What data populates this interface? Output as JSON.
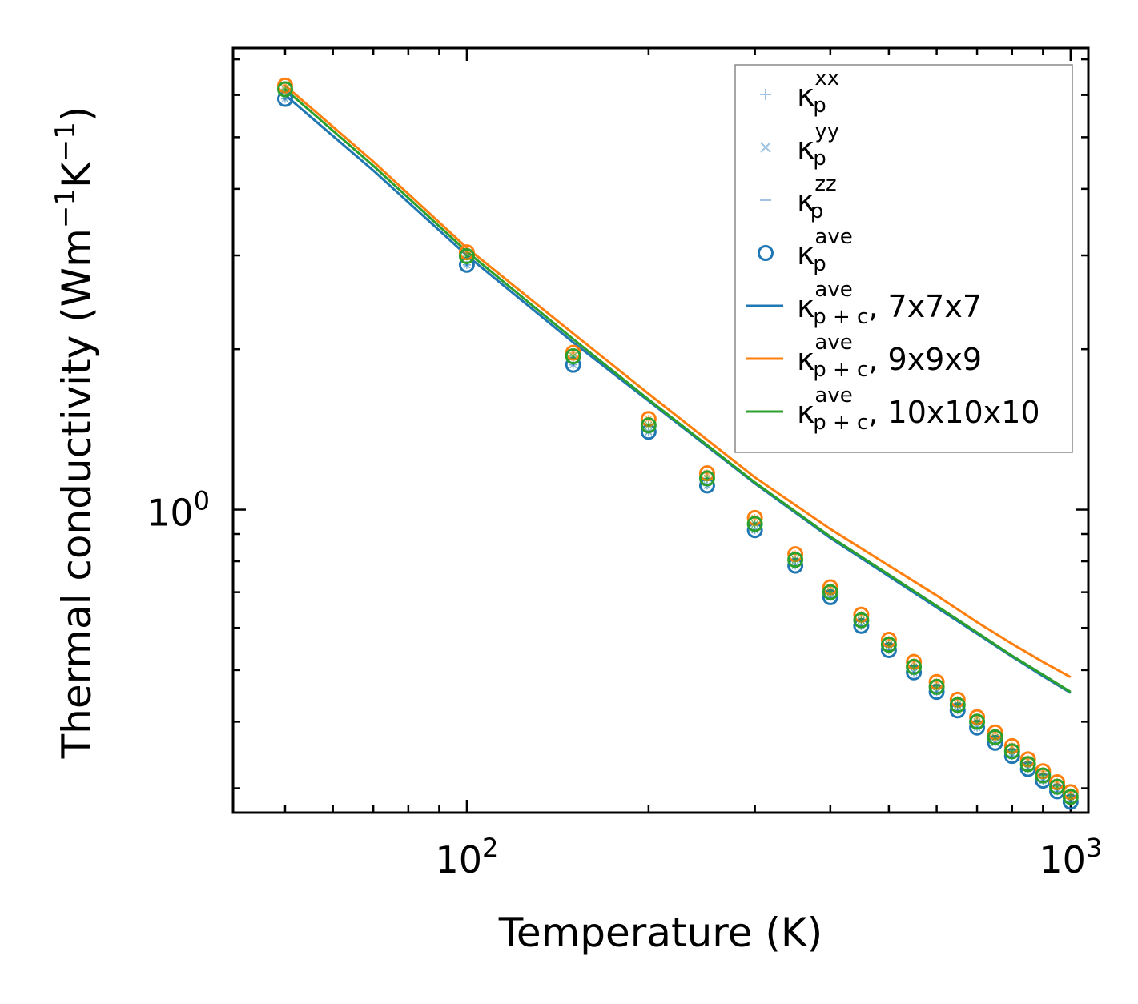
{
  "chart_data": {
    "type": "scatter",
    "xscale": "log",
    "yscale": "log",
    "xlim": [
      41,
      1070
    ],
    "ylim": [
      0.27,
      7.35
    ],
    "xlabel": "Temperature (K)",
    "ylabel_parts": {
      "main": "Thermal conductivity (Wm",
      "exp1": "−1",
      "mid": "K",
      "exp2": "−1",
      "close": ")"
    },
    "xticks": [
      {
        "value": 100,
        "base": "10",
        "exp": "2"
      },
      {
        "value": 1000,
        "base": "10",
        "exp": "3"
      }
    ],
    "yticks": [
      {
        "value": 1,
        "base": "10",
        "exp": "0"
      }
    ],
    "x": [
      50,
      100,
      150,
      200,
      250,
      300,
      350,
      400,
      450,
      500,
      550,
      600,
      650,
      700,
      750,
      800,
      850,
      900,
      950,
      1000
    ],
    "scatter_series": [
      {
        "name": "7x7x7",
        "color": "#1f77b4",
        "values": [
          5.9,
          2.88,
          1.87,
          1.4,
          1.11,
          0.915,
          0.785,
          0.685,
          0.605,
          0.545,
          0.495,
          0.455,
          0.42,
          0.39,
          0.365,
          0.345,
          0.326,
          0.31,
          0.296,
          0.283
        ]
      },
      {
        "name": "9x9x9",
        "color": "#ff7f0e",
        "values": [
          6.25,
          3.04,
          1.97,
          1.48,
          1.17,
          0.965,
          0.825,
          0.715,
          0.635,
          0.57,
          0.518,
          0.475,
          0.44,
          0.408,
          0.382,
          0.36,
          0.34,
          0.323,
          0.308,
          0.295
        ]
      },
      {
        "name": "10x10x10",
        "color": "#2ca02c",
        "values": [
          6.15,
          2.99,
          1.94,
          1.44,
          1.145,
          0.94,
          0.805,
          0.7,
          0.62,
          0.558,
          0.507,
          0.465,
          0.43,
          0.4,
          0.374,
          0.352,
          0.333,
          0.317,
          0.302,
          0.289
        ]
      }
    ],
    "series": [
      {
        "name": "κp+c ave, 7x7x7",
        "color": "#1f77b4",
        "x": [
          50,
          70,
          100,
          150,
          200,
          300,
          400,
          500,
          600,
          700,
          800,
          900,
          1000
        ],
        "values": [
          6.0,
          4.33,
          3.0,
          2.06,
          1.6,
          1.12,
          0.885,
          0.75,
          0.655,
          0.585,
          0.53,
          0.487,
          0.453
        ]
      },
      {
        "name": "κp+c ave, 9x9x9",
        "color": "#ff7f0e",
        "x": [
          50,
          70,
          100,
          150,
          200,
          300,
          400,
          500,
          600,
          700,
          800,
          900,
          1000
        ],
        "values": [
          6.25,
          4.5,
          3.1,
          2.14,
          1.65,
          1.15,
          0.92,
          0.785,
          0.69,
          0.615,
          0.56,
          0.518,
          0.485
        ]
      },
      {
        "name": "κp+c ave, 10x10x10",
        "color": "#2ca02c",
        "x": [
          50,
          70,
          100,
          150,
          200,
          300,
          400,
          500,
          600,
          700,
          800,
          900,
          1000
        ],
        "values": [
          6.15,
          4.42,
          3.05,
          2.09,
          1.61,
          1.125,
          0.89,
          0.755,
          0.66,
          0.588,
          0.532,
          0.49,
          0.455
        ]
      }
    ],
    "legend": {
      "placement": "top-right",
      "entries": [
        {
          "kind": "plus",
          "color": "#9fc3e0",
          "sym": "κ",
          "sub": "p",
          "sup": "xx",
          "rest": ""
        },
        {
          "kind": "cross",
          "color": "#9fc3e0",
          "sym": "κ",
          "sub": "p",
          "sup": "yy",
          "rest": ""
        },
        {
          "kind": "dash",
          "color": "#9fc3e0",
          "sym": "κ",
          "sub": "p",
          "sup": "zz",
          "rest": ""
        },
        {
          "kind": "circle",
          "color": "#1f77b4",
          "sym": "κ",
          "sub": "p",
          "sup": "ave",
          "rest": ""
        },
        {
          "kind": "line",
          "color": "#1f77b4",
          "sym": "κ",
          "sub": "p + c",
          "sup": "ave",
          "rest": ", 7x7x7"
        },
        {
          "kind": "line",
          "color": "#ff7f0e",
          "sym": "κ",
          "sub": "p + c",
          "sup": "ave",
          "rest": ", 9x9x9"
        },
        {
          "kind": "line",
          "color": "#2ca02c",
          "sym": "κ",
          "sub": "p + c",
          "sup": "ave",
          "rest": ", 10x10x10"
        }
      ]
    }
  }
}
